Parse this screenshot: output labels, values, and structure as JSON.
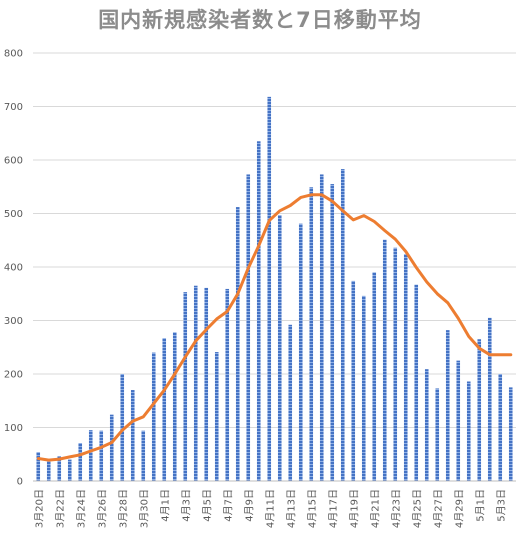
{
  "chart_data": {
    "type": "bar",
    "title": "国内新規感染者数と7日移動平均",
    "ylim": [
      0,
      800
    ],
    "yticks": [
      0,
      100,
      200,
      300,
      400,
      500,
      600,
      700,
      800
    ],
    "grid": true,
    "categories": [
      "3月20日",
      "3月21日",
      "3月22日",
      "3月23日",
      "3月24日",
      "3月25日",
      "3月26日",
      "3月27日",
      "3月28日",
      "3月29日",
      "3月30日",
      "3月31日",
      "4月1日",
      "4月2日",
      "4月3日",
      "4月4日",
      "4月5日",
      "4月6日",
      "4月7日",
      "4月8日",
      "4月9日",
      "4月10日",
      "4月11日",
      "4月12日",
      "4月13日",
      "4月14日",
      "4月15日",
      "4月16日",
      "4月17日",
      "4月18日",
      "4月19日",
      "4月20日",
      "4月21日",
      "4月22日",
      "4月23日",
      "4月24日",
      "4月25日",
      "4月26日",
      "4月27日",
      "4月28日",
      "4月29日",
      "4月30日",
      "5月1日",
      "5月2日",
      "5月3日",
      "5月4日"
    ],
    "tick_labels": [
      "3月20日",
      "3月22日",
      "3月24日",
      "3月26日",
      "3月28日",
      "3月30日",
      "4月1日",
      "4月3日",
      "4月5日",
      "4月7日",
      "4月9日",
      "4月11日",
      "4月13日",
      "4月15日",
      "4月17日",
      "4月19日",
      "4月21日",
      "4月23日",
      "4月25日",
      "4月27日",
      "4月29日",
      "5月1日",
      "5月3日"
    ],
    "series": [
      {
        "kind": "bar",
        "color": "#4472c4",
        "values": [
          54,
          39,
          46,
          40,
          71,
          95,
          94,
          124,
          200,
          170,
          94,
          240,
          267,
          278,
          353,
          365,
          361,
          241,
          359,
          512,
          573,
          635,
          718,
          497,
          292,
          481,
          549,
          573,
          555,
          583,
          374,
          346,
          390,
          451,
          436,
          424,
          367,
          209,
          173,
          282,
          225,
          186,
          265,
          305,
          200,
          175
        ]
      },
      {
        "kind": "line",
        "color": "#ed7d31",
        "values": [
          42,
          39,
          41,
          45,
          49,
          56,
          63,
          72,
          95,
          112,
          120,
          145,
          170,
          200,
          232,
          262,
          283,
          303,
          317,
          350,
          398,
          440,
          487,
          505,
          515,
          530,
          535,
          535,
          523,
          505,
          488,
          496,
          485,
          468,
          452,
          429,
          399,
          372,
          350,
          333,
          304,
          270,
          248,
          236,
          236,
          236
        ]
      }
    ]
  }
}
